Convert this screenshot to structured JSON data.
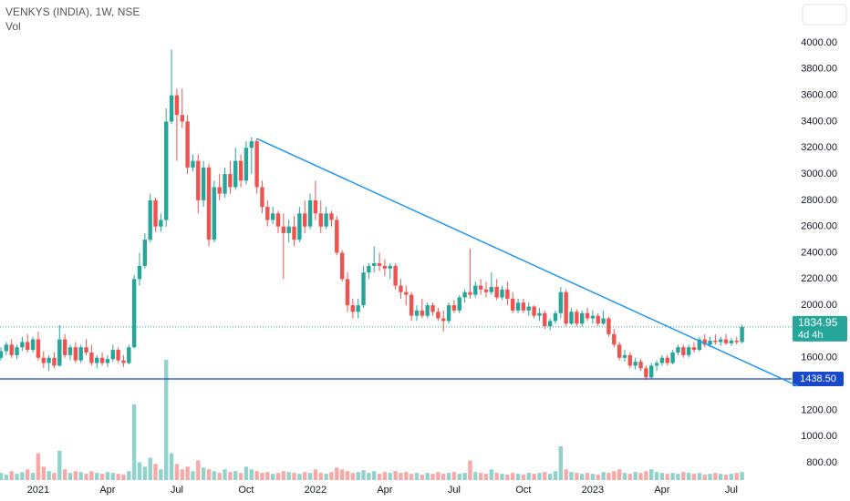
{
  "chart_data": {
    "type": "candlestick",
    "title": "VENKYS (INDIA), 1W, NSE",
    "subtitle": "Vol",
    "categories": [
      null,
      null,
      null,
      null,
      null,
      null,
      null,
      "2021",
      null,
      null,
      null,
      null,
      null,
      null,
      null,
      null,
      null,
      null,
      null,
      null,
      "Apr",
      null,
      null,
      null,
      null,
      null,
      null,
      null,
      null,
      null,
      null,
      null,
      null,
      "Jul",
      null,
      null,
      null,
      null,
      null,
      null,
      null,
      null,
      null,
      null,
      null,
      null,
      "Oct",
      null,
      null,
      null,
      null,
      null,
      null,
      null,
      null,
      null,
      null,
      null,
      null,
      "2022",
      null,
      null,
      null,
      null,
      null,
      null,
      null,
      null,
      null,
      null,
      null,
      null,
      "Apr",
      null,
      null,
      null,
      null,
      null,
      null,
      null,
      null,
      null,
      null,
      null,
      null,
      "Jul",
      null,
      null,
      null,
      null,
      null,
      null,
      null,
      null,
      null,
      null,
      null,
      null,
      "Oct",
      null,
      null,
      null,
      null,
      null,
      null,
      null,
      null,
      null,
      null,
      null,
      null,
      "2023",
      null,
      null,
      null,
      null,
      null,
      null,
      null,
      null,
      null,
      null,
      null,
      null,
      "Apr",
      null,
      null,
      null,
      null,
      null,
      null,
      null,
      null,
      null,
      null,
      null,
      null,
      "Jul",
      null,
      null
    ],
    "ohlc": [
      [
        1600,
        1680,
        1580,
        1650
      ],
      [
        1650,
        1720,
        1620,
        1700
      ],
      [
        1700,
        1740,
        1600,
        1620
      ],
      [
        1620,
        1700,
        1590,
        1680
      ],
      [
        1680,
        1760,
        1650,
        1720
      ],
      [
        1720,
        1780,
        1640,
        1660
      ],
      [
        1660,
        1760,
        1640,
        1740
      ],
      [
        1740,
        1800,
        1580,
        1600
      ],
      [
        1600,
        1650,
        1520,
        1560
      ],
      [
        1560,
        1620,
        1500,
        1600
      ],
      [
        1600,
        1640,
        1520,
        1540
      ],
      [
        1540,
        1850,
        1530,
        1740
      ],
      [
        1740,
        1780,
        1600,
        1620
      ],
      [
        1620,
        1700,
        1580,
        1680
      ],
      [
        1680,
        1720,
        1560,
        1580
      ],
      [
        1580,
        1700,
        1560,
        1680
      ],
      [
        1680,
        1740,
        1620,
        1640
      ],
      [
        1640,
        1700,
        1540,
        1560
      ],
      [
        1560,
        1620,
        1520,
        1600
      ],
      [
        1600,
        1640,
        1540,
        1560
      ],
      [
        1560,
        1620,
        1530,
        1590
      ],
      [
        1590,
        1700,
        1570,
        1660
      ],
      [
        1660,
        1680,
        1560,
        1580
      ],
      [
        1580,
        1620,
        1530,
        1560
      ],
      [
        1560,
        1700,
        1550,
        1680
      ],
      [
        1680,
        2230,
        1670,
        2200
      ],
      [
        2200,
        2400,
        2150,
        2300
      ],
      [
        2300,
        2550,
        2280,
        2500
      ],
      [
        2500,
        2850,
        2480,
        2800
      ],
      [
        2800,
        2820,
        2560,
        2600
      ],
      [
        2600,
        2700,
        2560,
        2650
      ],
      [
        2650,
        3500,
        2600,
        3400
      ],
      [
        3400,
        3950,
        3380,
        3600
      ],
      [
        3600,
        3650,
        3100,
        3450
      ],
      [
        3450,
        3650,
        3350,
        3400
      ],
      [
        3400,
        3450,
        3000,
        3050
      ],
      [
        3050,
        3150,
        3020,
        3100
      ],
      [
        3100,
        3150,
        2700,
        2800
      ],
      [
        2800,
        3100,
        2750,
        3050
      ],
      [
        3050,
        3080,
        2450,
        2500
      ],
      [
        2500,
        2950,
        2480,
        2900
      ],
      [
        2900,
        3000,
        2800,
        2850
      ],
      [
        2850,
        3050,
        2820,
        3000
      ],
      [
        3000,
        3100,
        2850,
        2900
      ],
      [
        2900,
        3200,
        2880,
        3100
      ],
      [
        3100,
        3150,
        2900,
        2950
      ],
      [
        2950,
        3250,
        2920,
        3200
      ],
      [
        3200,
        3280,
        3000,
        3250
      ],
      [
        3250,
        3270,
        2850,
        2900
      ],
      [
        2900,
        2950,
        2700,
        2750
      ],
      [
        2750,
        2800,
        2600,
        2650
      ],
      [
        2650,
        2750,
        2620,
        2700
      ],
      [
        2700,
        2720,
        2550,
        2600
      ],
      [
        2600,
        2700,
        2200,
        2550
      ],
      [
        2550,
        2650,
        2480,
        2600
      ],
      [
        2600,
        2680,
        2450,
        2500
      ],
      [
        2500,
        2750,
        2480,
        2700
      ],
      [
        2700,
        2800,
        2550,
        2600
      ],
      [
        2600,
        2850,
        2580,
        2800
      ],
      [
        2800,
        2950,
        2650,
        2700
      ],
      [
        2700,
        2800,
        2550,
        2600
      ],
      [
        2600,
        2750,
        2580,
        2700
      ],
      [
        2700,
        2720,
        2600,
        2650
      ],
      [
        2650,
        2680,
        2380,
        2400
      ],
      [
        2400,
        2420,
        2180,
        2200
      ],
      [
        2200,
        2250,
        1950,
        2000
      ],
      [
        2000,
        2050,
        1900,
        1950
      ],
      [
        1950,
        2050,
        1900,
        2000
      ],
      [
        2000,
        2300,
        1980,
        2250
      ],
      [
        2250,
        2320,
        2200,
        2300
      ],
      [
        2300,
        2450,
        2250,
        2320
      ],
      [
        2320,
        2400,
        2260,
        2300
      ],
      [
        2300,
        2350,
        2220,
        2280
      ],
      [
        2280,
        2320,
        2200,
        2300
      ],
      [
        2300,
        2320,
        2120,
        2150
      ],
      [
        2150,
        2200,
        2050,
        2100
      ],
      [
        2100,
        2150,
        2000,
        2080
      ],
      [
        2080,
        2100,
        1880,
        1920
      ],
      [
        1920,
        2000,
        1880,
        1960
      ],
      [
        1960,
        2050,
        1900,
        1920
      ],
      [
        1920,
        2020,
        1900,
        2000
      ],
      [
        2000,
        2020,
        1920,
        1950
      ],
      [
        1950,
        1980,
        1880,
        1900
      ],
      [
        1900,
        1960,
        1800,
        1880
      ],
      [
        1880,
        2020,
        1860,
        2000
      ],
      [
        2000,
        2040,
        1940,
        1960
      ],
      [
        1960,
        2080,
        1940,
        2060
      ],
      [
        2060,
        2120,
        2020,
        2100
      ],
      [
        2100,
        2430,
        2050,
        2080
      ],
      [
        2080,
        2180,
        2060,
        2150
      ],
      [
        2150,
        2200,
        2080,
        2120
      ],
      [
        2120,
        2180,
        2060,
        2100
      ],
      [
        2100,
        2250,
        2080,
        2140
      ],
      [
        2140,
        2200,
        2040,
        2060
      ],
      [
        2060,
        2150,
        2040,
        2120
      ],
      [
        2120,
        2180,
        2000,
        2050
      ],
      [
        2050,
        2100,
        1940,
        1960
      ],
      [
        1960,
        2050,
        1940,
        2020
      ],
      [
        2020,
        2050,
        1940,
        1960
      ],
      [
        1960,
        2020,
        1920,
        1990
      ],
      [
        1990,
        2000,
        1900,
        1920
      ],
      [
        1920,
        1980,
        1880,
        1940
      ],
      [
        1940,
        1960,
        1820,
        1840
      ],
      [
        1840,
        1900,
        1810,
        1880
      ],
      [
        1880,
        1960,
        1860,
        1940
      ],
      [
        1940,
        2140,
        1900,
        2100
      ],
      [
        2100,
        2120,
        1840,
        1860
      ],
      [
        1860,
        1980,
        1850,
        1950
      ],
      [
        1950,
        1970,
        1840,
        1860
      ],
      [
        1860,
        1960,
        1840,
        1940
      ],
      [
        1940,
        1980,
        1880,
        1900
      ],
      [
        1900,
        1960,
        1860,
        1920
      ],
      [
        1920,
        1940,
        1840,
        1860
      ],
      [
        1860,
        1960,
        1850,
        1900
      ],
      [
        1900,
        1910,
        1760,
        1780
      ],
      [
        1780,
        1820,
        1680,
        1700
      ],
      [
        1700,
        1720,
        1580,
        1600
      ],
      [
        1600,
        1660,
        1570,
        1620
      ],
      [
        1620,
        1640,
        1520,
        1540
      ],
      [
        1540,
        1600,
        1510,
        1570
      ],
      [
        1570,
        1590,
        1500,
        1520
      ],
      [
        1520,
        1540,
        1430,
        1450
      ],
      [
        1450,
        1560,
        1440,
        1540
      ],
      [
        1540,
        1580,
        1500,
        1560
      ],
      [
        1560,
        1620,
        1540,
        1600
      ],
      [
        1600,
        1620,
        1540,
        1560
      ],
      [
        1560,
        1660,
        1550,
        1640
      ],
      [
        1640,
        1700,
        1620,
        1680
      ],
      [
        1680,
        1700,
        1600,
        1620
      ],
      [
        1620,
        1700,
        1600,
        1680
      ],
      [
        1680,
        1720,
        1640,
        1660
      ],
      [
        1660,
        1760,
        1650,
        1740
      ],
      [
        1740,
        1780,
        1680,
        1700
      ],
      [
        1700,
        1760,
        1680,
        1730
      ],
      [
        1730,
        1780,
        1700,
        1720
      ],
      [
        1720,
        1760,
        1690,
        1740
      ],
      [
        1740,
        1780,
        1700,
        1710
      ],
      [
        1710,
        1750,
        1690,
        1730
      ],
      [
        1730,
        1760,
        1700,
        1720
      ],
      [
        1720,
        1850,
        1710,
        1834.95
      ]
    ],
    "volume": [
      8,
      6,
      10,
      7,
      9,
      12,
      8,
      30,
      15,
      10,
      8,
      33,
      12,
      8,
      10,
      9,
      7,
      10,
      8,
      7,
      9,
      8,
      7,
      6,
      10,
      85,
      20,
      15,
      25,
      18,
      12,
      135,
      30,
      18,
      12,
      15,
      10,
      22,
      14,
      12,
      10,
      8,
      12,
      9,
      10,
      8,
      15,
      12,
      10,
      8,
      9,
      7,
      8,
      10,
      9,
      8,
      7,
      9,
      8,
      12,
      8,
      7,
      9,
      14,
      12,
      10,
      8,
      9,
      11,
      8,
      10,
      7,
      9,
      8,
      10,
      8,
      9,
      7,
      8,
      6,
      8,
      7,
      9,
      7,
      8,
      9,
      7,
      8,
      22,
      9,
      8,
      7,
      12,
      8,
      7,
      6,
      8,
      7,
      6,
      8,
      7,
      8,
      9,
      7,
      10,
      38,
      12,
      9,
      8,
      7,
      8,
      7,
      6,
      9,
      8,
      10,
      12,
      8,
      7,
      9,
      8,
      10,
      12,
      9,
      8,
      7,
      8,
      7,
      9,
      8,
      7,
      8,
      6,
      7,
      8,
      7,
      6,
      7,
      8,
      9
    ],
    "ylim": [
      800,
      4000
    ],
    "yticks": [
      {
        "value": 800,
        "label": "800.00"
      },
      {
        "value": 1000,
        "label": "1000.00"
      },
      {
        "value": 1200,
        "label": "1200.00"
      },
      {
        "value": 1600,
        "label": "1600.00"
      },
      {
        "value": 2000,
        "label": "2000.00"
      },
      {
        "value": 2200,
        "label": "2200.00"
      },
      {
        "value": 2400,
        "label": "2400.00"
      },
      {
        "value": 2600,
        "label": "2600.00"
      },
      {
        "value": 2800,
        "label": "2800.00"
      },
      {
        "value": 3000,
        "label": "3000.00"
      },
      {
        "value": 3200,
        "label": "3200.00"
      },
      {
        "value": 3400,
        "label": "3400.00"
      },
      {
        "value": 3600,
        "label": "3600.00"
      },
      {
        "value": 3800,
        "label": "3800.00"
      },
      {
        "value": 4000,
        "label": "4000.00"
      }
    ],
    "countdown": "4d 4h",
    "support": {
      "value": 1438.5,
      "label": "1438.50"
    },
    "trendline": {
      "x": [
        48,
        149.5
      ],
      "y": [
        3270,
        1384
      ]
    },
    "up_color": "#26a69a",
    "down_color": "#ef5350",
    "line_color": "#2196f3",
    "support_color": "#1848cc"
  }
}
